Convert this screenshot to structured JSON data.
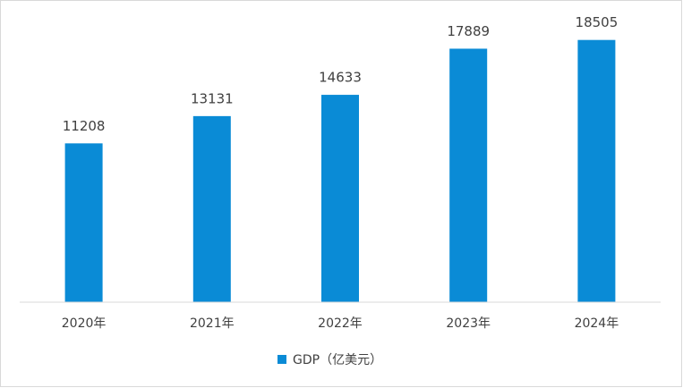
{
  "chart_data": {
    "type": "bar",
    "categories": [
      "2020年",
      "2021年",
      "2022年",
      "2023年",
      "2024年"
    ],
    "series": [
      {
        "name": "GDP（亿美元）",
        "color": "#0a8bd6",
        "values": [
          11208,
          13131,
          14633,
          17889,
          18505
        ]
      }
    ],
    "ylim": [
      0,
      20000
    ],
    "legend": "bottom",
    "show_value_labels": true
  }
}
